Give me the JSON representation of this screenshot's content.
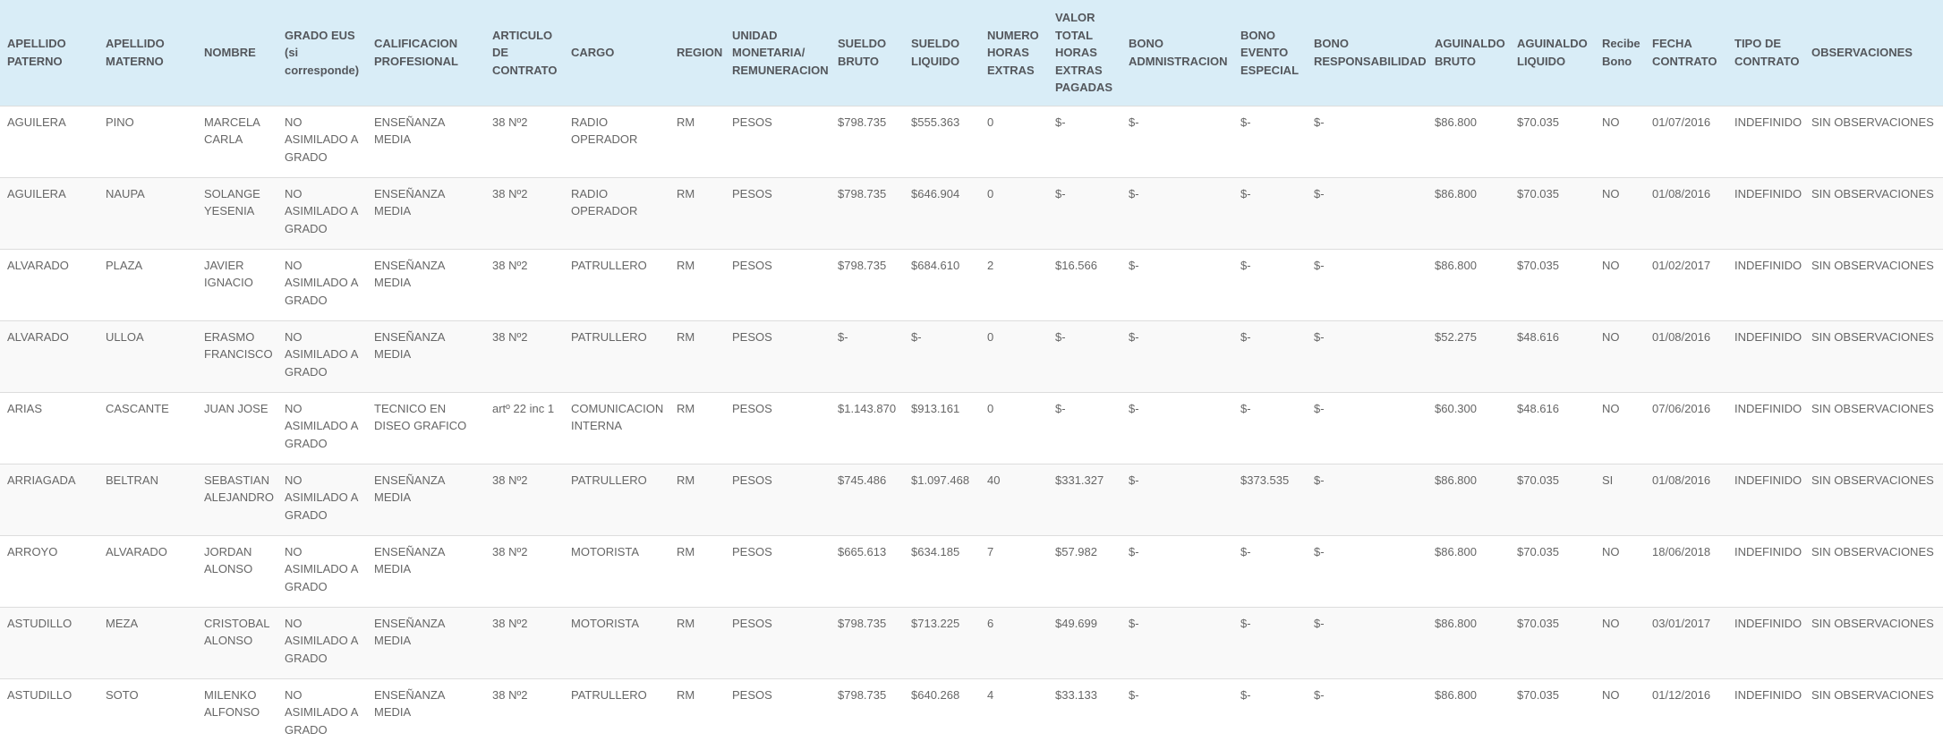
{
  "table": {
    "columns": [
      "APELLIDO PATERNO",
      "APELLIDO MATERNO",
      "NOMBRE",
      "GRADO EUS (si corresponde)",
      "CALIFICACION PROFESIONAL",
      "ARTICULO DE CONTRATO",
      "CARGO",
      "REGION",
      "UNIDAD MONETARIA/ REMUNERACION",
      "SUELDO BRUTO",
      "SUELDO LIQUIDO",
      "NUMERO HORAS EXTRAS",
      "VALOR TOTAL HORAS EXTRAS PAGADAS",
      "BONO ADMNISTRACION",
      "BONO EVENTO ESPECIAL",
      "BONO RESPONSABILIDAD",
      "AGUINALDO BRUTO",
      "AGUINALDO LIQUIDO",
      "Recibe Bono",
      "FECHA CONTRATO",
      "TIPO DE CONTRATO",
      "OBSERVACIONES"
    ],
    "rows": [
      [
        "AGUILERA",
        "PINO",
        "MARCELA CARLA",
        "NO ASIMILADO A GRADO",
        "ENSEÑANZA MEDIA",
        "38 Nº2",
        "RADIO OPERADOR",
        "RM",
        "PESOS",
        "$798.735",
        "$555.363",
        "0",
        "$-",
        "$-",
        "$-",
        "$-",
        "$86.800",
        "$70.035",
        "NO",
        "01/07/2016",
        "INDEFINIDO",
        "SIN OBSERVACIONES"
      ],
      [
        "AGUILERA",
        "NAUPA",
        "SOLANGE YESENIA",
        "NO ASIMILADO A GRADO",
        "ENSEÑANZA MEDIA",
        "38 Nº2",
        "RADIO OPERADOR",
        "RM",
        "PESOS",
        "$798.735",
        "$646.904",
        "0",
        "$-",
        "$-",
        "$-",
        "$-",
        "$86.800",
        "$70.035",
        "NO",
        "01/08/2016",
        "INDEFINIDO",
        "SIN OBSERVACIONES"
      ],
      [
        "ALVARADO",
        "PLAZA",
        "JAVIER IGNACIO",
        "NO ASIMILADO A GRADO",
        "ENSEÑANZA MEDIA",
        "38 Nº2",
        "PATRULLERO",
        "RM",
        "PESOS",
        "$798.735",
        "$684.610",
        "2",
        "$16.566",
        "$-",
        "$-",
        "$-",
        "$86.800",
        "$70.035",
        "NO",
        "01/02/2017",
        "INDEFINIDO",
        "SIN OBSERVACIONES"
      ],
      [
        "ALVARADO",
        "ULLOA",
        "ERASMO FRANCISCO",
        "NO ASIMILADO A GRADO",
        "ENSEÑANZA MEDIA",
        "38 Nº2",
        "PATRULLERO",
        "RM",
        "PESOS",
        "$-",
        "$-",
        "0",
        "$-",
        "$-",
        "$-",
        "$-",
        "$52.275",
        "$48.616",
        "NO",
        "01/08/2016",
        "INDEFINIDO",
        "SIN OBSERVACIONES"
      ],
      [
        "ARIAS",
        "CASCANTE",
        "JUAN JOSE",
        "NO ASIMILADO A GRADO",
        "TECNICO EN DISEO GRAFICO",
        "artº 22 inc 1",
        "COMUNICACION INTERNA",
        "RM",
        "PESOS",
        "$1.143.870",
        "$913.161",
        "0",
        "$-",
        "$-",
        "$-",
        "$-",
        "$60.300",
        "$48.616",
        "NO",
        "07/06/2016",
        "INDEFINIDO",
        "SIN OBSERVACIONES"
      ],
      [
        "ARRIAGADA",
        "BELTRAN",
        "SEBASTIAN ALEJANDRO",
        "NO ASIMILADO A GRADO",
        "ENSEÑANZA MEDIA",
        "38 Nº2",
        "PATRULLERO",
        "RM",
        "PESOS",
        "$745.486",
        "$1.097.468",
        "40",
        "$331.327",
        "$-",
        "$373.535",
        "$-",
        "$86.800",
        "$70.035",
        "SI",
        "01/08/2016",
        "INDEFINIDO",
        "SIN OBSERVACIONES"
      ],
      [
        "ARROYO",
        "ALVARADO",
        "JORDAN ALONSO",
        "NO ASIMILADO A GRADO",
        "ENSEÑANZA MEDIA",
        "38 Nº2",
        "MOTORISTA",
        "RM",
        "PESOS",
        "$665.613",
        "$634.185",
        "7",
        "$57.982",
        "$-",
        "$-",
        "$-",
        "$86.800",
        "$70.035",
        "NO",
        "18/06/2018",
        "INDEFINIDO",
        "SIN OBSERVACIONES"
      ],
      [
        "ASTUDILLO",
        "MEZA",
        "CRISTOBAL ALONSO",
        "NO ASIMILADO A GRADO",
        "ENSEÑANZA MEDIA",
        "38 Nº2",
        "MOTORISTA",
        "RM",
        "PESOS",
        "$798.735",
        "$713.225",
        "6",
        "$49.699",
        "$-",
        "$-",
        "$-",
        "$86.800",
        "$70.035",
        "NO",
        "03/01/2017",
        "INDEFINIDO",
        "SIN OBSERVACIONES"
      ],
      [
        "ASTUDILLO",
        "SOTO",
        "MILENKO ALFONSO",
        "NO ASIMILADO A GRADO",
        "ENSEÑANZA MEDIA",
        "38 Nº2",
        "PATRULLERO",
        "RM",
        "PESOS",
        "$798.735",
        "$640.268",
        "4",
        "$33.133",
        "$-",
        "$-",
        "$-",
        "$86.800",
        "$70.035",
        "NO",
        "01/12/2016",
        "INDEFINIDO",
        "SIN OBSERVACIONES"
      ]
    ]
  }
}
